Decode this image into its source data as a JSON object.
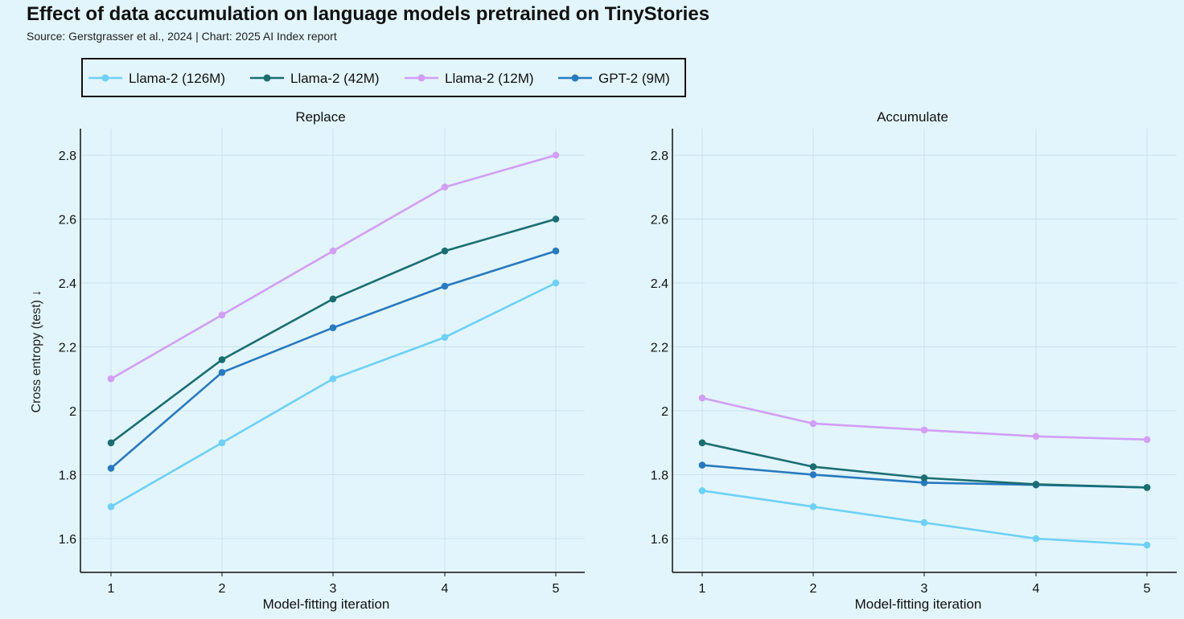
{
  "title": "Effect of data accumulation on language models pretrained on TinyStories",
  "subtitle": "Source: Gerstgrasser et al., 2024 | Chart: 2025 AI Index report",
  "chart_data": {
    "type": "line",
    "xlabel": "Model-fitting iteration",
    "ylabel": "Cross entropy (test) ↓",
    "x": [
      1,
      2,
      3,
      4,
      5
    ],
    "x_ticks": [
      "1",
      "2",
      "3",
      "4",
      "5"
    ],
    "y_ticks": [
      "1.6",
      "1.8",
      "2",
      "2.2",
      "2.4",
      "2.6",
      "2.8"
    ],
    "ylim": [
      1.5,
      2.88
    ],
    "legend": [
      {
        "name": "Llama-2 (126M)",
        "color": "#6dd0f8"
      },
      {
        "name": "Llama-2 (42M)",
        "color": "#1a6e72"
      },
      {
        "name": "Llama-2 (12M)",
        "color": "#d29ef7"
      },
      {
        "name": "GPT-2 (9M)",
        "color": "#2879bf"
      }
    ],
    "panels": [
      {
        "title": "Replace",
        "series": [
          {
            "name": "Llama-2 (12M)",
            "color": "#d29ef7",
            "values": [
              2.1,
              2.3,
              2.5,
              2.7,
              2.8
            ]
          },
          {
            "name": "Llama-2 (126M)",
            "color": "#6dd0f8",
            "values": [
              1.7,
              1.9,
              2.1,
              2.23,
              2.4
            ]
          },
          {
            "name": "GPT-2 (9M)",
            "color": "#2879bf",
            "values": [
              1.82,
              2.12,
              2.26,
              2.39,
              2.5
            ]
          },
          {
            "name": "Llama-2 (42M)",
            "color": "#1a6e72",
            "values": [
              1.9,
              2.16,
              2.35,
              2.5,
              2.6
            ]
          }
        ]
      },
      {
        "title": "Accumulate",
        "series": [
          {
            "name": "Llama-2 (12M)",
            "color": "#d29ef7",
            "values": [
              2.04,
              1.96,
              1.94,
              1.92,
              1.91
            ]
          },
          {
            "name": "Llama-2 (126M)",
            "color": "#6dd0f8",
            "values": [
              1.75,
              1.7,
              1.65,
              1.6,
              1.58
            ]
          },
          {
            "name": "GPT-2 (9M)",
            "color": "#2879bf",
            "values": [
              1.83,
              1.8,
              1.775,
              1.768,
              1.76
            ]
          },
          {
            "name": "Llama-2 (42M)",
            "color": "#1a6e72",
            "values": [
              1.9,
              1.825,
              1.79,
              1.77,
              1.76
            ]
          }
        ]
      }
    ]
  }
}
